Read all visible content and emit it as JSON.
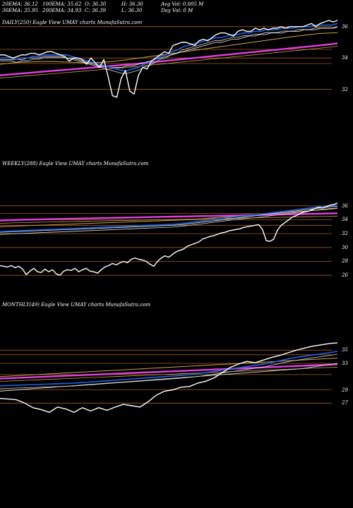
{
  "header": {
    "cells": [
      [
        "20EMA: 36.12",
        "100EMA: 35.62",
        "O: 36.30",
        "H: 36.30",
        "Avg Vol: 0.005 M"
      ],
      [
        "30EMA: 35.95",
        "200EMA: 34.93",
        "C: 36.39",
        "L: 36.30",
        "Day Vol: 0  M"
      ]
    ]
  },
  "colors": {
    "background": "#000000",
    "price": "#ffffff",
    "ema_blue": "#1f5fe0",
    "ema_magenta": "#e040e0",
    "ema_gold": "#c8a050",
    "ema_light": "#d8d8d8",
    "gridline": "#a05a1e"
  },
  "chart_data": [
    {
      "type": "line",
      "title": "DAILY(250) Eagle   View  UMAY charts MunafaSutra.com",
      "x": "trading days (250)",
      "y_ticks": [
        "36",
        "34",
        "32"
      ],
      "ylim": [
        31.4,
        36.8
      ],
      "series": [
        {
          "role": "price",
          "values": [
            34.2,
            34.2,
            34.1,
            34.0,
            34.1,
            34.2,
            34.2,
            34.3,
            34.3,
            34.2,
            34.3,
            34.4,
            34.4,
            34.3,
            34.2,
            34.1,
            33.8,
            34.0,
            34.0,
            33.9,
            33.6,
            34.0,
            33.7,
            33.4,
            33.9,
            32.8,
            31.6,
            31.5,
            32.7,
            33.2,
            31.9,
            31.7,
            32.9,
            33.4,
            33.3,
            33.8,
            34.0,
            34.2,
            34.4,
            34.3,
            34.8,
            34.9,
            35.0,
            35.0,
            34.9,
            34.8,
            35.1,
            35.2,
            35.1,
            35.3,
            35.5,
            35.6,
            35.6,
            35.5,
            35.4,
            35.7,
            35.8,
            35.7,
            35.7,
            35.9,
            35.8,
            35.9,
            35.8,
            35.9,
            35.9,
            36.0,
            35.9,
            36.0,
            36.0,
            36.0,
            36.0,
            36.1,
            36.2,
            36.0,
            36.2,
            36.3,
            36.4,
            36.3,
            36.4
          ]
        },
        {
          "role": "ema20",
          "values": [
            34.0,
            34.0,
            34.0,
            33.9,
            34.0,
            34.0,
            34.1,
            34.1,
            34.2,
            34.2,
            34.2,
            34.2,
            34.2,
            34.1,
            34.0,
            33.9,
            33.8,
            33.7,
            33.6,
            33.5,
            33.4,
            33.3,
            33.2,
            33.2,
            33.3,
            33.4,
            33.6,
            33.7,
            33.9,
            34.1,
            34.2,
            34.4,
            34.5,
            34.7,
            34.8,
            34.9,
            35.0,
            35.1,
            35.2,
            35.3,
            35.3,
            35.4,
            35.5,
            35.5,
            35.6,
            35.6,
            35.7,
            35.7,
            35.8,
            35.8,
            35.8,
            35.9,
            35.9,
            35.9,
            36.0,
            36.0,
            36.0,
            36.1,
            36.1,
            36.1,
            36.1,
            36.2
          ]
        },
        {
          "role": "ema30",
          "values": [
            33.9,
            33.9,
            33.9,
            33.9,
            33.9,
            34.0,
            34.0,
            34.0,
            34.1,
            34.1,
            34.1,
            34.1,
            34.0,
            34.0,
            33.9,
            33.8,
            33.7,
            33.6,
            33.5,
            33.5,
            33.4,
            33.4,
            33.4,
            33.5,
            33.5,
            33.6,
            33.7,
            33.8,
            33.9,
            34.0,
            34.1,
            34.2,
            34.3,
            34.4,
            34.5,
            34.6,
            34.7,
            34.8,
            34.9,
            35.0,
            35.0,
            35.1,
            35.2,
            35.2,
            35.3,
            35.4,
            35.4,
            35.5,
            35.5,
            35.6,
            35.6,
            35.6,
            35.7,
            35.7,
            35.7,
            35.8,
            35.8,
            35.8,
            35.9,
            35.9,
            35.9,
            35.95
          ]
        },
        {
          "role": "ema100",
          "values": [
            33.6,
            33.65,
            33.7,
            33.72,
            33.74,
            33.76,
            33.78,
            33.78,
            33.77,
            33.76,
            33.74,
            33.72,
            33.7,
            33.7,
            33.71,
            33.73,
            33.76,
            33.8,
            33.85,
            33.9,
            33.96,
            34.02,
            34.08,
            34.14,
            34.2,
            34.26,
            34.32,
            34.38,
            34.44,
            34.5,
            34.56,
            34.62,
            34.68,
            34.74,
            34.8,
            34.86,
            34.92,
            34.98,
            35.04,
            35.1,
            35.16,
            35.22,
            35.28,
            35.34,
            35.4,
            35.45,
            35.5,
            35.55,
            35.58,
            35.6,
            35.62
          ]
        },
        {
          "role": "ema200",
          "values": [
            32.9,
            32.95,
            33.0,
            33.05,
            33.1,
            33.15,
            33.2,
            33.25,
            33.3,
            33.35,
            33.4,
            33.45,
            33.5,
            33.55,
            33.6,
            33.66,
            33.72,
            33.78,
            33.84,
            33.9,
            33.96,
            34.02,
            34.08,
            34.14,
            34.2,
            34.26,
            34.32,
            34.38,
            34.44,
            34.5,
            34.56,
            34.62,
            34.68,
            34.74,
            34.8,
            34.86,
            34.93
          ]
        }
      ]
    },
    {
      "type": "line",
      "title": "WEEKLY(288) Eagle   View  UMAY charts MunafaSutra.com",
      "x": "weeks (288)",
      "y_ticks": [
        "36",
        "34",
        "32",
        "30",
        "28",
        "26"
      ],
      "ylim": [
        25.0,
        37.2
      ],
      "series": [
        {
          "role": "price",
          "values": [
            27.4,
            27.3,
            27.2,
            27.4,
            27.1,
            27.3,
            26.9,
            26.1,
            26.6,
            27.0,
            26.5,
            26.4,
            26.9,
            26.5,
            26.8,
            26.2,
            26.0,
            26.6,
            26.8,
            26.7,
            27.0,
            26.5,
            26.8,
            27.0,
            26.6,
            26.5,
            26.3,
            26.8,
            27.2,
            27.4,
            27.7,
            27.5,
            27.8,
            28.0,
            27.8,
            28.3,
            28.5,
            28.3,
            28.2,
            28.0,
            27.6,
            27.3,
            28.0,
            28.5,
            28.8,
            28.6,
            29.0,
            29.4,
            29.6,
            29.8,
            30.2,
            30.4,
            30.6,
            30.8,
            31.2,
            31.4,
            31.6,
            31.7,
            31.9,
            32.1,
            32.2,
            32.4,
            32.5,
            32.6,
            32.7,
            32.9,
            33.0,
            33.1,
            33.2,
            33.3,
            32.6,
            31.0,
            30.9,
            31.2,
            32.5,
            33.2,
            33.6,
            34.0,
            34.4,
            34.6,
            34.9,
            35.1,
            35.2,
            35.4,
            35.6,
            35.8,
            35.7,
            35.9,
            36.1,
            36.2,
            36.4
          ]
        },
        {
          "role": "ema20",
          "values": [
            32.3,
            32.35,
            32.4,
            32.45,
            32.5,
            32.55,
            32.6,
            32.65,
            32.7,
            32.75,
            32.8,
            32.85,
            32.9,
            32.95,
            33.0,
            33.05,
            33.1,
            33.15,
            33.2,
            33.25,
            33.3,
            33.35,
            33.45,
            33.6,
            33.75,
            33.9,
            34.05,
            34.2,
            34.35,
            34.5,
            34.6,
            34.7,
            34.85,
            35.0,
            35.15,
            35.3,
            35.45,
            35.6,
            35.75,
            35.9,
            36.0,
            36.12
          ]
        },
        {
          "role": "ema30",
          "values": [
            32.2,
            32.25,
            32.3,
            32.35,
            32.4,
            32.45,
            32.5,
            32.55,
            32.6,
            32.65,
            32.7,
            32.75,
            32.8,
            32.85,
            32.9,
            32.95,
            33.0,
            33.05,
            33.1,
            33.15,
            33.2,
            33.3,
            33.45,
            33.6,
            33.75,
            33.9,
            34.05,
            34.2,
            34.35,
            34.5,
            34.65,
            34.8,
            34.95,
            35.1,
            35.25,
            35.4,
            35.55,
            35.7,
            35.85,
            35.95
          ]
        },
        {
          "role": "ema100",
          "values": [
            33.0,
            33.05,
            33.1,
            33.15,
            33.2,
            33.25,
            33.3,
            33.35,
            33.4,
            33.45,
            33.5,
            33.55,
            33.6,
            33.65,
            33.7,
            33.75,
            33.8,
            33.85,
            33.9,
            33.95,
            34.0,
            34.1,
            34.2,
            34.3,
            34.4,
            34.5,
            34.6,
            34.7,
            34.8,
            34.9,
            35.0,
            35.1,
            35.2,
            35.3,
            35.4,
            35.5,
            35.62
          ]
        },
        {
          "role": "ema200",
          "values": [
            33.9,
            33.95,
            34.0,
            34.03,
            34.06,
            34.09,
            34.12,
            34.15,
            34.18,
            34.21,
            34.24,
            34.27,
            34.3,
            34.33,
            34.36,
            34.39,
            34.42,
            34.45,
            34.48,
            34.51,
            34.54,
            34.57,
            34.6,
            34.63,
            34.66,
            34.69,
            34.72,
            34.75,
            34.78,
            34.81,
            34.84,
            34.87,
            34.9,
            34.93
          ]
        }
      ]
    },
    {
      "type": "line",
      "title": "MONTHLY(49) Eagle   View  UMAY charts MunafaSutra.com",
      "x": "months (49)",
      "y_ticks": [
        "35",
        "33",
        "29",
        "27"
      ],
      "ylim": [
        25.0,
        37.8
      ],
      "series": [
        {
          "role": "price",
          "values": [
            27.7,
            27.6,
            27.5,
            27.0,
            26.3,
            26.0,
            25.6,
            26.4,
            26.1,
            25.6,
            26.3,
            25.8,
            26.3,
            25.9,
            26.4,
            26.8,
            26.6,
            26.4,
            27.2,
            28.2,
            28.8,
            29.0,
            29.4,
            29.5,
            30.0,
            30.3,
            30.8,
            31.6,
            32.4,
            32.9,
            33.3,
            33.1,
            33.5,
            33.9,
            34.2,
            34.6,
            35.0,
            35.3,
            35.6,
            35.8,
            36.0,
            36.1
          ]
        },
        {
          "role": "ema20",
          "values": [
            29.6,
            29.65,
            29.7,
            29.75,
            29.8,
            29.85,
            29.9,
            29.95,
            30.0,
            30.1,
            30.2,
            30.3,
            30.4,
            30.5,
            30.6,
            30.7,
            30.8,
            30.9,
            31.0,
            31.1,
            31.2,
            31.35,
            31.5,
            31.7,
            31.9,
            32.1,
            32.3,
            32.5,
            32.7,
            32.9,
            33.2,
            33.5,
            33.8,
            34.0,
            34.2,
            34.4,
            34.6,
            34.8
          ]
        },
        {
          "role": "ema30",
          "values": [
            28.8,
            28.9,
            29.0,
            29.1,
            29.2,
            29.3,
            29.4,
            29.5,
            29.6,
            29.7,
            29.8,
            29.9,
            30.0,
            30.1,
            30.2,
            30.3,
            30.4,
            30.5,
            30.6,
            30.7,
            30.8,
            30.9,
            31.0,
            31.1,
            31.2,
            31.3,
            31.4,
            31.5,
            31.6,
            31.7,
            31.8,
            31.9,
            32.0,
            32.1,
            32.2,
            32.4,
            32.6,
            32.8,
            33.0
          ]
        },
        {
          "role": "ema100",
          "values": [
            31.0,
            31.08,
            31.16,
            31.24,
            31.32,
            31.4,
            31.48,
            31.56,
            31.64,
            31.72,
            31.8,
            31.88,
            31.96,
            32.04,
            32.12,
            32.2,
            32.28,
            32.36,
            32.44,
            32.52,
            32.6,
            32.68,
            32.76,
            32.84,
            32.92,
            33.0,
            33.08,
            33.16,
            33.24,
            33.32,
            33.4,
            33.48,
            33.56,
            33.64,
            33.72,
            33.8
          ]
        },
        {
          "role": "ema200",
          "values": [
            30.7,
            30.76,
            30.82,
            30.88,
            30.94,
            31.0,
            31.06,
            31.12,
            31.18,
            31.24,
            31.3,
            31.36,
            31.42,
            31.48,
            31.54,
            31.6,
            31.66,
            31.72,
            31.78,
            31.84,
            31.9,
            31.96,
            32.02,
            32.08,
            32.14,
            32.2,
            32.26,
            32.32,
            32.38,
            32.44,
            32.5,
            32.56,
            32.62,
            32.68,
            32.74,
            32.8,
            32.86
          ]
        }
      ]
    }
  ]
}
